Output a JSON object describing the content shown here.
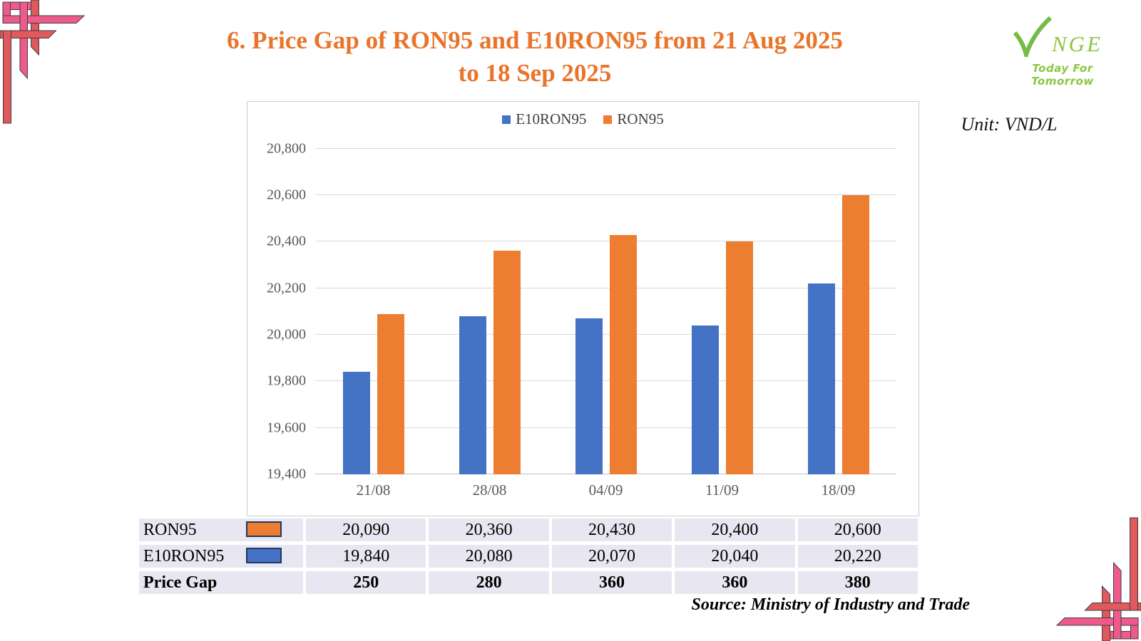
{
  "slide": {
    "title_line1": "6. Price Gap of RON95 and E10RON95 from 21 Aug 2025",
    "title_line2": "to 18 Sep 2025",
    "title_color": "#E8752B",
    "unit_label": "Unit: VND/L",
    "source": "Source: Ministry of Industry and Trade"
  },
  "logo": {
    "letters": "NGE",
    "tagline": "Today For Tomorrow",
    "color": "#8CC63F"
  },
  "chart_data": {
    "type": "bar",
    "title": "Price Gap of RON95 and E10RON95 from 21 Aug 2025 to 18 Sep 2025",
    "categories": [
      "21/08",
      "28/08",
      "04/09",
      "11/09",
      "18/09"
    ],
    "series": [
      {
        "name": "E10RON95",
        "color": "#4472C4",
        "values": [
          19840,
          20080,
          20070,
          20040,
          20220
        ]
      },
      {
        "name": "RON95",
        "color": "#ED7D31",
        "values": [
          20090,
          20360,
          20430,
          20400,
          20600
        ]
      }
    ],
    "ylabel": "VND/L",
    "xlabel": "",
    "ylim": [
      19400,
      20900
    ],
    "yticks": [
      19400,
      19600,
      19800,
      20000,
      20200,
      20400,
      20600,
      20800
    ],
    "grid": true,
    "legend_position": "top"
  },
  "table": {
    "rows": [
      {
        "label": "RON95",
        "swatch": "#ED7D31",
        "bold": false,
        "values": [
          "20,090",
          "20,360",
          "20,430",
          "20,400",
          "20,600"
        ]
      },
      {
        "label": "E10RON95",
        "swatch": "#4472C4",
        "bold": false,
        "values": [
          "19,840",
          "20,080",
          "20,070",
          "20,040",
          "20,220"
        ]
      },
      {
        "label": "Price Gap",
        "swatch": null,
        "bold": true,
        "values": [
          "250",
          "280",
          "360",
          "360",
          "380"
        ]
      }
    ]
  },
  "decor": {
    "pink": "#EE5A8B",
    "coral": "#E0595C"
  }
}
